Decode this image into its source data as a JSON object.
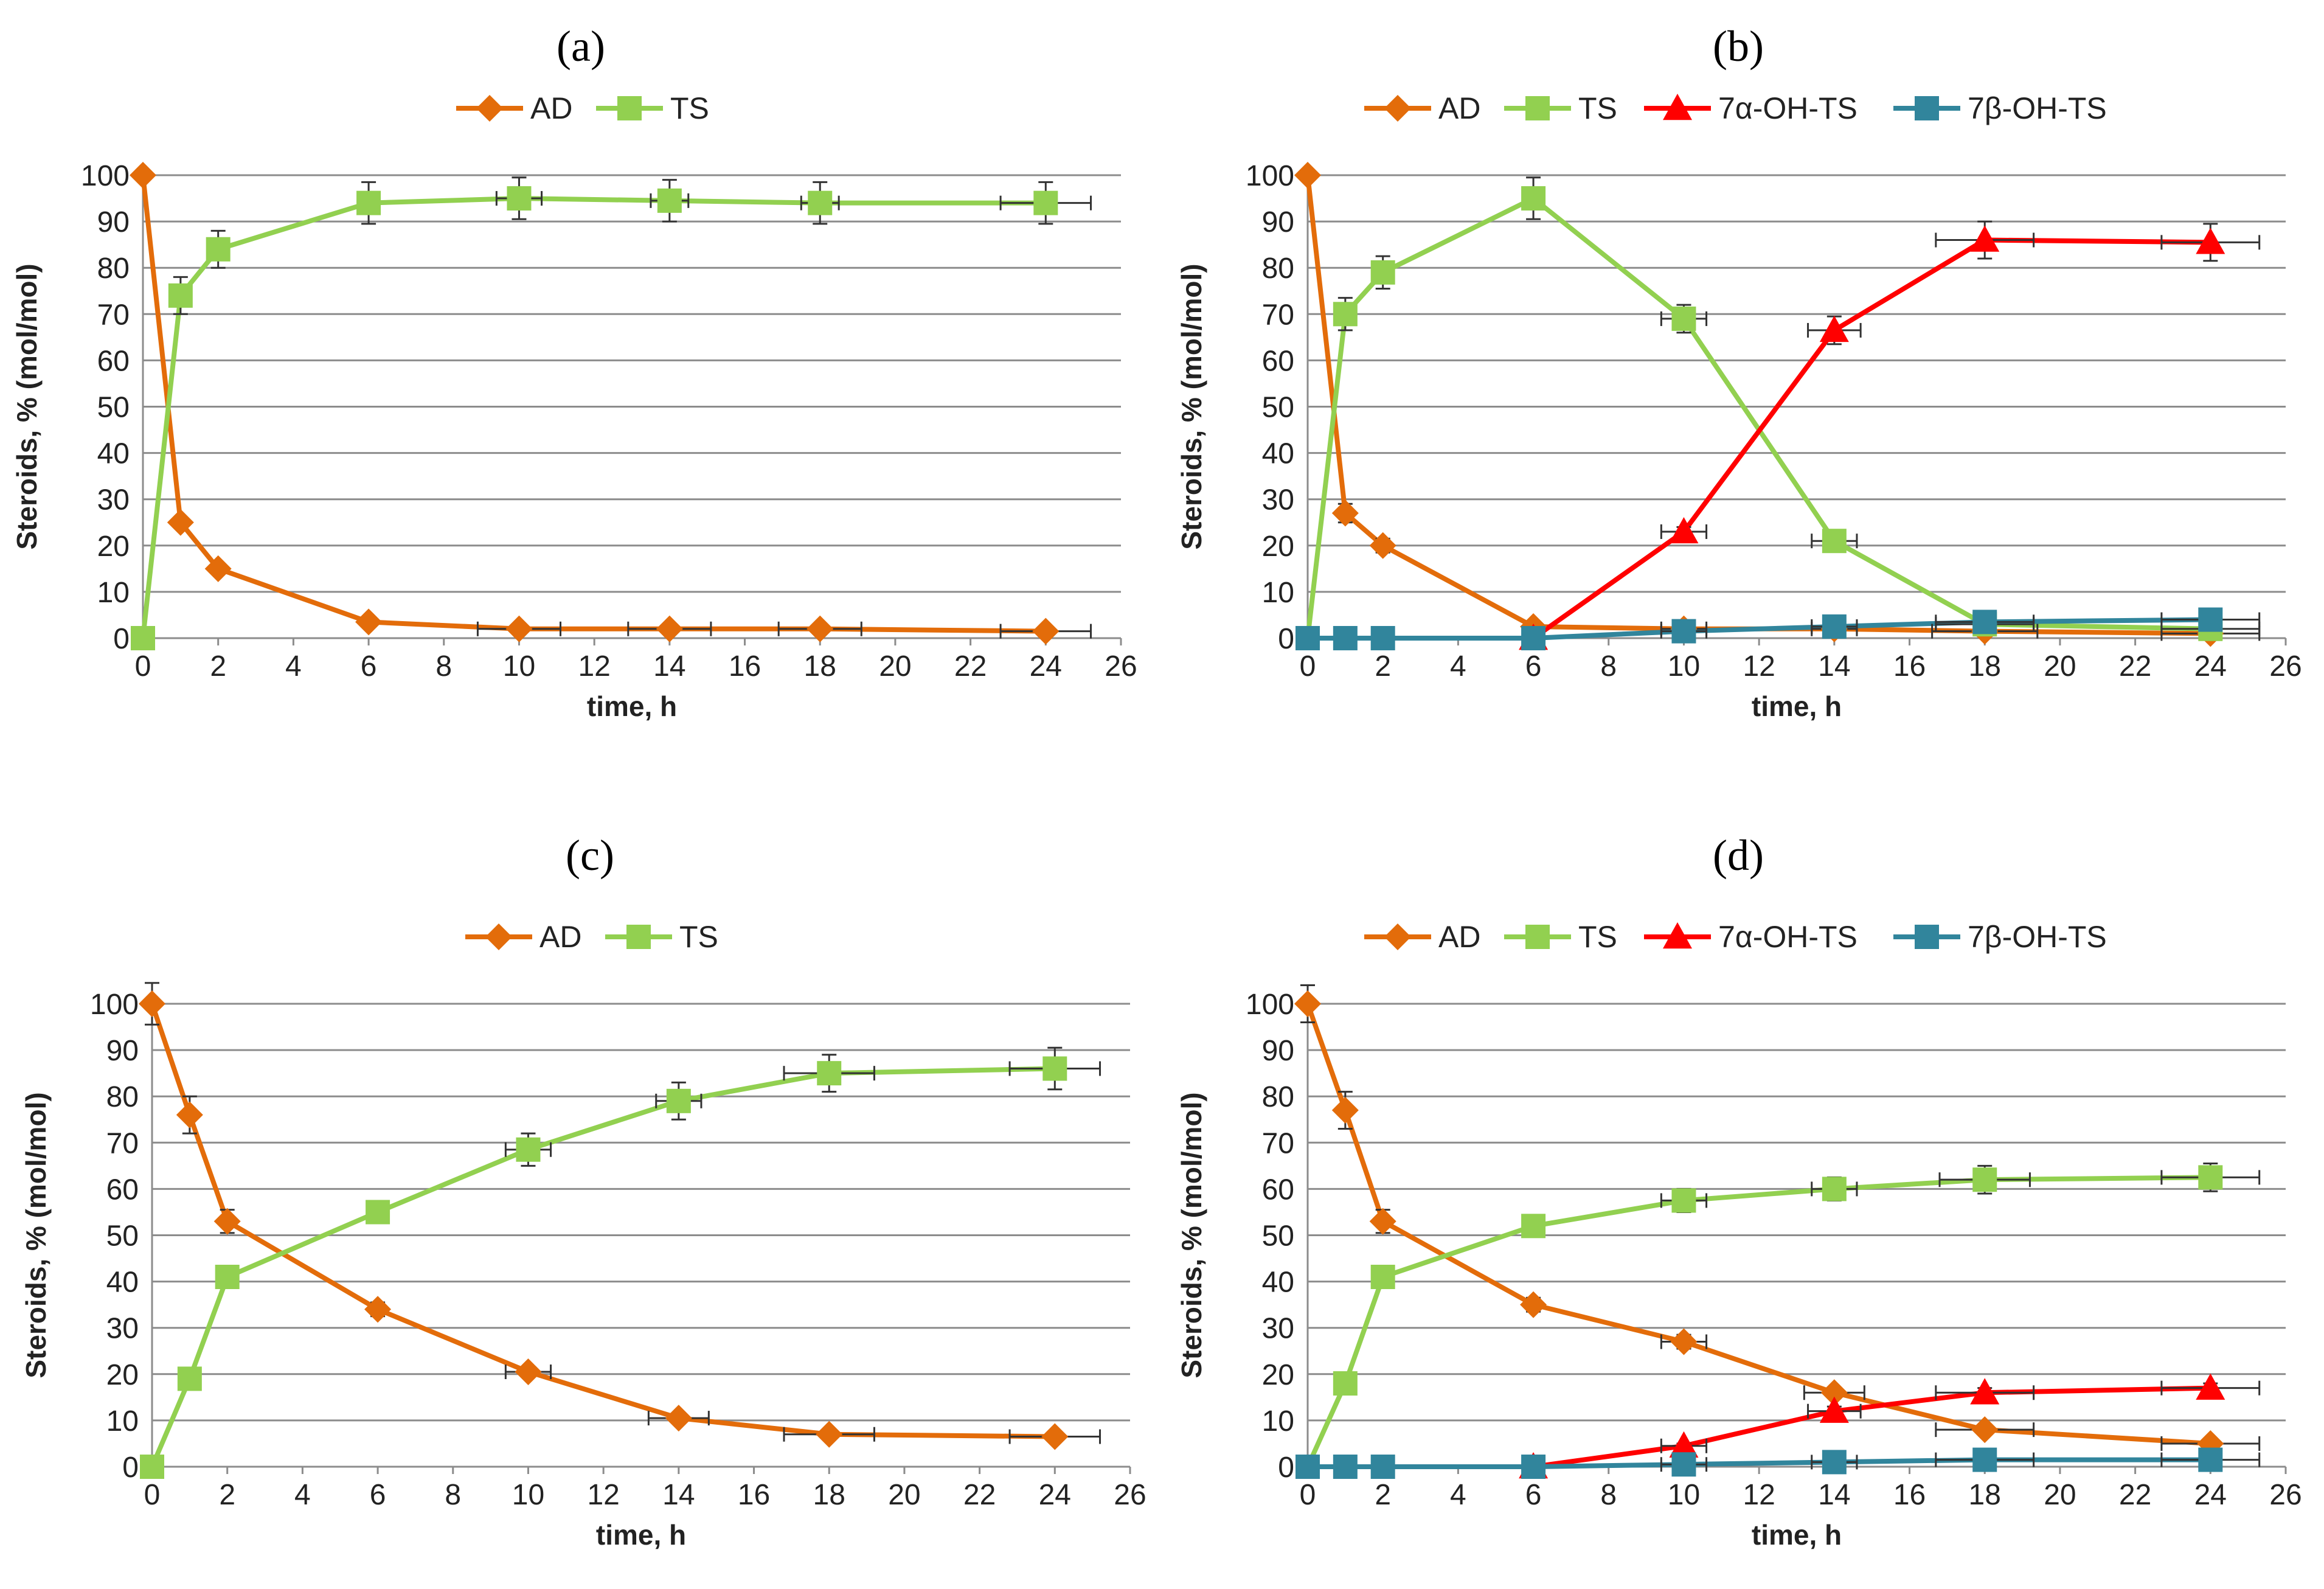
{
  "colors": {
    "AD": "#E36C0A",
    "TS": "#92D050",
    "7a": "#FF0000",
    "7b": "#31859C",
    "grid": "#8c8c8c",
    "text": "#222222"
  },
  "chart_data": [
    {
      "type": "line",
      "panel_label": "(a)",
      "xlabel": "time, h",
      "ylabel": "Steroids, % (mol/mol)",
      "xlim": [
        0,
        26
      ],
      "ylim": [
        0,
        100
      ],
      "x_ticks": [
        "0",
        "2",
        "4",
        "6",
        "8",
        "10",
        "12",
        "14",
        "16",
        "18",
        "20",
        "22",
        "24",
        "26"
      ],
      "y_ticks": [
        "0",
        "10",
        "20",
        "30",
        "40",
        "50",
        "60",
        "70",
        "80",
        "90",
        "100"
      ],
      "x": [
        0,
        1,
        2,
        6,
        10,
        14,
        18,
        24
      ],
      "series": [
        {
          "name": "AD",
          "marker": "diamond",
          "color_key": "AD",
          "values": [
            100,
            25,
            15,
            3.5,
            2,
            2,
            2,
            1.5
          ],
          "y_err": [
            0,
            0,
            0,
            1,
            1,
            0.5,
            0.5,
            0.5
          ],
          "x_err": [
            0,
            0,
            0,
            0,
            1.1,
            1.1,
            1.1,
            1.2
          ]
        },
        {
          "name": "TS",
          "marker": "square",
          "color_key": "TS",
          "values": [
            0,
            74,
            84,
            94,
            95,
            94.5,
            94,
            94
          ],
          "y_err": [
            0,
            4,
            4,
            4.5,
            4.5,
            4.5,
            4.5,
            4.5
          ],
          "x_err": [
            0,
            0,
            0,
            0,
            0.6,
            0.5,
            0.5,
            1.2
          ]
        }
      ]
    },
    {
      "type": "line",
      "panel_label": "(b)",
      "xlabel": "time, h",
      "ylabel": "Steroids, % (mol/mol)",
      "xlim": [
        0,
        26
      ],
      "ylim": [
        0,
        100
      ],
      "x_ticks": [
        "0",
        "2",
        "4",
        "6",
        "8",
        "10",
        "12",
        "14",
        "16",
        "18",
        "20",
        "22",
        "24",
        "26"
      ],
      "y_ticks": [
        "0",
        "10",
        "20",
        "30",
        "40",
        "50",
        "60",
        "70",
        "80",
        "90",
        "100"
      ],
      "x": [
        0,
        1,
        2,
        6,
        10,
        14,
        18,
        24
      ],
      "series": [
        {
          "name": "AD",
          "marker": "diamond",
          "color_key": "AD",
          "values": [
            100,
            27,
            20,
            2.5,
            2,
            2,
            1.5,
            1
          ],
          "y_err": [
            0,
            2,
            1.5,
            1,
            0.5,
            0.5,
            0.5,
            0.5
          ],
          "x_err": [
            0,
            0,
            0,
            0,
            0.6,
            0.6,
            1.4,
            1.3
          ]
        },
        {
          "name": "TS",
          "marker": "square",
          "color_key": "TS",
          "values": [
            0,
            70,
            79,
            95,
            69,
            21,
            3,
            2
          ],
          "y_err": [
            0,
            3.5,
            3.5,
            4.5,
            3,
            1,
            0.5,
            0.5
          ],
          "x_err": [
            0,
            0,
            0,
            0,
            0.6,
            0.6,
            1.3,
            1.3
          ]
        },
        {
          "name": "7α-OH-TS",
          "marker": "triangle",
          "color_key": "7a",
          "values": [
            null,
            null,
            null,
            0,
            23,
            66.5,
            86,
            85.5
          ],
          "y_err": [
            0,
            0,
            0,
            0,
            1,
            3,
            4,
            4
          ],
          "x_err": [
            0,
            0,
            0,
            0,
            0.6,
            0.7,
            1.3,
            1.3
          ]
        },
        {
          "name": "7β-OH-TS",
          "marker": "square",
          "color_key": "7b",
          "values": [
            0,
            0,
            0,
            0,
            1.5,
            2.5,
            3.5,
            4
          ],
          "y_err": [
            0,
            0,
            0,
            0,
            0.5,
            0.5,
            0.5,
            0.5
          ],
          "x_err": [
            0,
            0,
            0,
            0,
            0.6,
            0.6,
            1.3,
            1.3
          ]
        }
      ]
    },
    {
      "type": "line",
      "panel_label": "(c)",
      "xlabel": "time, h",
      "ylabel": "Steroids, % (mol/mol)",
      "xlim": [
        0,
        26
      ],
      "ylim": [
        0,
        100
      ],
      "x_ticks": [
        "0",
        "2",
        "4",
        "6",
        "8",
        "10",
        "12",
        "14",
        "16",
        "18",
        "20",
        "22",
        "24",
        "26"
      ],
      "y_ticks": [
        "0",
        "10",
        "20",
        "30",
        "40",
        "50",
        "60",
        "70",
        "80",
        "90",
        "100"
      ],
      "x": [
        0,
        1,
        2,
        6,
        10,
        14,
        18,
        24
      ],
      "series": [
        {
          "name": "AD",
          "marker": "diamond",
          "color_key": "AD",
          "values": [
            100,
            76,
            53,
            34,
            20.5,
            10.5,
            7,
            6.5
          ],
          "y_err": [
            4.5,
            4,
            2.5,
            1.5,
            1,
            1,
            1,
            0.5
          ],
          "x_err": [
            0,
            0,
            0,
            0,
            0.6,
            0.8,
            1.2,
            1.2
          ]
        },
        {
          "name": "TS",
          "marker": "square",
          "color_key": "TS",
          "values": [
            0,
            19,
            41,
            55,
            68.5,
            79,
            85,
            86
          ],
          "y_err": [
            0,
            1,
            1.5,
            1.5,
            3.5,
            4,
            4,
            4.5
          ],
          "x_err": [
            0,
            0,
            0,
            0,
            0.6,
            0.6,
            1.2,
            1.2
          ]
        }
      ]
    },
    {
      "type": "line",
      "panel_label": "(d)",
      "xlabel": "time, h",
      "ylabel": "Steroids, % (mol/mol)",
      "xlim": [
        0,
        26
      ],
      "ylim": [
        0,
        100
      ],
      "x_ticks": [
        "0",
        "2",
        "4",
        "6",
        "8",
        "10",
        "12",
        "14",
        "16",
        "18",
        "20",
        "22",
        "24",
        "26"
      ],
      "y_ticks": [
        "0",
        "10",
        "20",
        "30",
        "40",
        "50",
        "60",
        "70",
        "80",
        "90",
        "100"
      ],
      "x": [
        0,
        1,
        2,
        6,
        10,
        14,
        18,
        24
      ],
      "series": [
        {
          "name": "AD",
          "marker": "diamond",
          "color_key": "AD",
          "values": [
            100,
            77,
            53,
            35,
            27,
            16,
            8,
            5
          ],
          "y_err": [
            4,
            4,
            2.5,
            1.5,
            1.5,
            1,
            1,
            0.5
          ],
          "x_err": [
            0,
            0,
            0,
            0,
            0.6,
            0.8,
            1.3,
            1.3
          ]
        },
        {
          "name": "TS",
          "marker": "square",
          "color_key": "TS",
          "values": [
            0,
            18,
            41,
            52,
            57.5,
            60,
            62,
            62.5
          ],
          "y_err": [
            0,
            1,
            1.5,
            1.5,
            2.5,
            2.5,
            3,
            3
          ],
          "x_err": [
            0,
            0,
            0,
            0,
            0.6,
            0.6,
            1.2,
            1.3
          ]
        },
        {
          "name": "7α-OH-TS",
          "marker": "triangle",
          "color_key": "7a",
          "values": [
            null,
            null,
            null,
            0,
            4.5,
            12,
            16,
            17
          ],
          "y_err": [
            0,
            0,
            0,
            0,
            0.5,
            1,
            1,
            1
          ],
          "x_err": [
            0,
            0,
            0,
            0,
            0.6,
            0.7,
            1.3,
            1.3
          ]
        },
        {
          "name": "7β-OH-TS",
          "marker": "square",
          "color_key": "7b",
          "values": [
            0,
            0,
            0,
            0,
            0.5,
            1,
            1.5,
            1.5
          ],
          "y_err": [
            0,
            0,
            0,
            0,
            0.5,
            0.5,
            0.5,
            0.5
          ],
          "x_err": [
            0,
            0,
            0,
            0,
            0.6,
            0.6,
            1.3,
            1.3
          ]
        }
      ]
    }
  ]
}
